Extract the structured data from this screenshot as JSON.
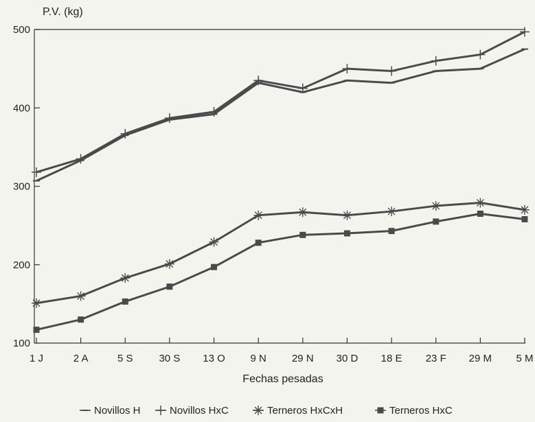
{
  "chart_data": {
    "type": "line",
    "ylabel": "P.V. (kg)",
    "xlabel": "Fechas pesadas",
    "categories": [
      "1 J",
      "2 A",
      "5 S",
      "30 S",
      "13 O",
      "9 N",
      "29 N",
      "30 D",
      "18 E",
      "23 F",
      "29 M",
      "5 M"
    ],
    "ylim": [
      100,
      500
    ],
    "yticks": [
      100,
      200,
      300,
      400,
      500
    ],
    "grid": false,
    "legend_position": "bottom",
    "series": [
      {
        "name": "Novillos H",
        "marker": "dash",
        "color": "#4a4a4a",
        "values": [
          307,
          333,
          365,
          385,
          392,
          432,
          420,
          435,
          432,
          447,
          450,
          475
        ]
      },
      {
        "name": "Novillos HxC",
        "marker": "plus",
        "color": "#4a4a4a",
        "values": [
          318,
          335,
          367,
          387,
          395,
          435,
          425,
          450,
          447,
          460,
          468,
          497
        ]
      },
      {
        "name": "Terneros HxCxH",
        "marker": "asterisk",
        "color": "#4a4a4a",
        "values": [
          151,
          160,
          183,
          201,
          229,
          263,
          267,
          263,
          268,
          275,
          279,
          270
        ]
      },
      {
        "name": "Terneros HxC",
        "marker": "square",
        "color": "#4a4a4a",
        "values": [
          117,
          130,
          153,
          172,
          197,
          228,
          238,
          240,
          243,
          255,
          265,
          258
        ]
      }
    ]
  }
}
